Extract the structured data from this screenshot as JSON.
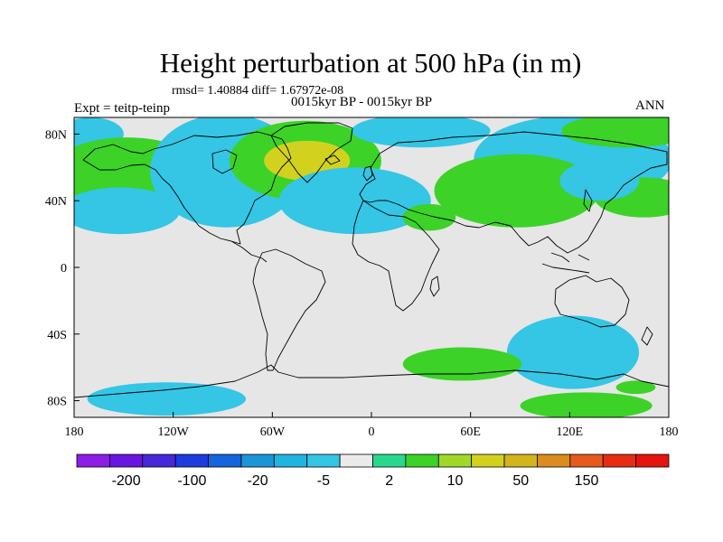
{
  "title": "Height perturbation at 500 hPa (in m)",
  "stats_line": "rmsd= 1.40884 diff= 1.67972e-08",
  "period_line": "0015kyr BP - 0015kyr BP",
  "experiment_label": "Expt = teitp-teinp",
  "season_label": "ANN",
  "map": {
    "background_color": "#e6e6e6",
    "lon_range": [
      -180,
      180
    ],
    "lat_range": [
      -90,
      90
    ],
    "lon_ticks": [
      {
        "value": -180,
        "label": "180"
      },
      {
        "value": -120,
        "label": "120W"
      },
      {
        "value": -60,
        "label": "60W"
      },
      {
        "value": 0,
        "label": "0"
      },
      {
        "value": 60,
        "label": "60E"
      },
      {
        "value": 120,
        "label": "120E"
      },
      {
        "value": 180,
        "label": "180"
      }
    ],
    "lat_ticks": [
      {
        "value": 80,
        "label": "80N"
      },
      {
        "value": 40,
        "label": "40N"
      },
      {
        "value": 0,
        "label": "0"
      },
      {
        "value": -40,
        "label": "40S"
      },
      {
        "value": -80,
        "label": "80S"
      }
    ],
    "anomaly_regions": [
      {
        "name": "arctic-cyan-west",
        "category": "-5",
        "center": [
          -170,
          80
        ],
        "size": [
          20,
          10
        ]
      },
      {
        "name": "north-pacific-green",
        "category": "2",
        "center": [
          -148,
          56
        ],
        "size": [
          48,
          22
        ]
      },
      {
        "name": "ne-pacific-cyan",
        "category": "-5",
        "center": [
          -152,
          34
        ],
        "size": [
          36,
          14
        ]
      },
      {
        "name": "north-america-cyan",
        "category": "-5",
        "center": [
          -88,
          58
        ],
        "size": [
          46,
          34
        ]
      },
      {
        "name": "greenland-green",
        "category": "2",
        "center": [
          -40,
          64
        ],
        "size": [
          46,
          24
        ]
      },
      {
        "name": "greenland-core-green",
        "category": "10",
        "center": [
          -39,
          64
        ],
        "size": [
          26,
          12
        ]
      },
      {
        "name": "europe-atlantic-cyan",
        "category": "-5",
        "center": [
          -10,
          40
        ],
        "size": [
          46,
          20
        ]
      },
      {
        "name": "arctic-cyan-center",
        "category": "-5",
        "center": [
          30,
          82
        ],
        "size": [
          42,
          10
        ]
      },
      {
        "name": "middle-east-green",
        "category": "2",
        "center": [
          35,
          30
        ],
        "size": [
          16,
          8
        ]
      },
      {
        "name": "siberia-cyan",
        "category": "-5",
        "center": [
          122,
          65
        ],
        "size": [
          60,
          26
        ]
      },
      {
        "name": "arctic-green-east",
        "category": "2",
        "center": [
          155,
          82
        ],
        "size": [
          40,
          10
        ]
      },
      {
        "name": "central-asia-green",
        "category": "2",
        "center": [
          88,
          46
        ],
        "size": [
          50,
          22
        ]
      },
      {
        "name": "nw-pacific-green",
        "category": "2",
        "center": [
          165,
          42
        ],
        "size": [
          30,
          12
        ]
      },
      {
        "name": "east-asia-cyan",
        "category": "-5",
        "center": [
          138,
          52
        ],
        "size": [
          24,
          12
        ]
      },
      {
        "name": "south-indian-cyan",
        "category": "-5",
        "center": [
          122,
          -51
        ],
        "size": [
          40,
          22
        ]
      },
      {
        "name": "south-atlantic-green",
        "category": "2",
        "center": [
          55,
          -58
        ],
        "size": [
          36,
          10
        ]
      },
      {
        "name": "antarctic-green-east",
        "category": "2",
        "center": [
          130,
          -83
        ],
        "size": [
          40,
          8
        ]
      },
      {
        "name": "ross-sea-green",
        "category": "2",
        "center": [
          160,
          -72
        ],
        "size": [
          12,
          4
        ]
      },
      {
        "name": "antarctic-cyan-west",
        "category": "-5",
        "center": [
          -124,
          -79
        ],
        "size": [
          48,
          10
        ]
      }
    ]
  },
  "colorbar": {
    "colors": [
      "#8c1ee6",
      "#6a14e0",
      "#4628d8",
      "#1c3ce0",
      "#1464dc",
      "#1a96d8",
      "#22b4e0",
      "#34c6e4",
      "#ebebeb",
      "#2ad88c",
      "#3cd228",
      "#a0d828",
      "#d2d21e",
      "#d2b41c",
      "#dc8c1e",
      "#e65a1e",
      "#e62d14",
      "#e6140e"
    ],
    "labels": [
      "-200",
      "-100",
      "-20",
      "-5",
      "2",
      "10",
      "50",
      "150"
    ]
  }
}
